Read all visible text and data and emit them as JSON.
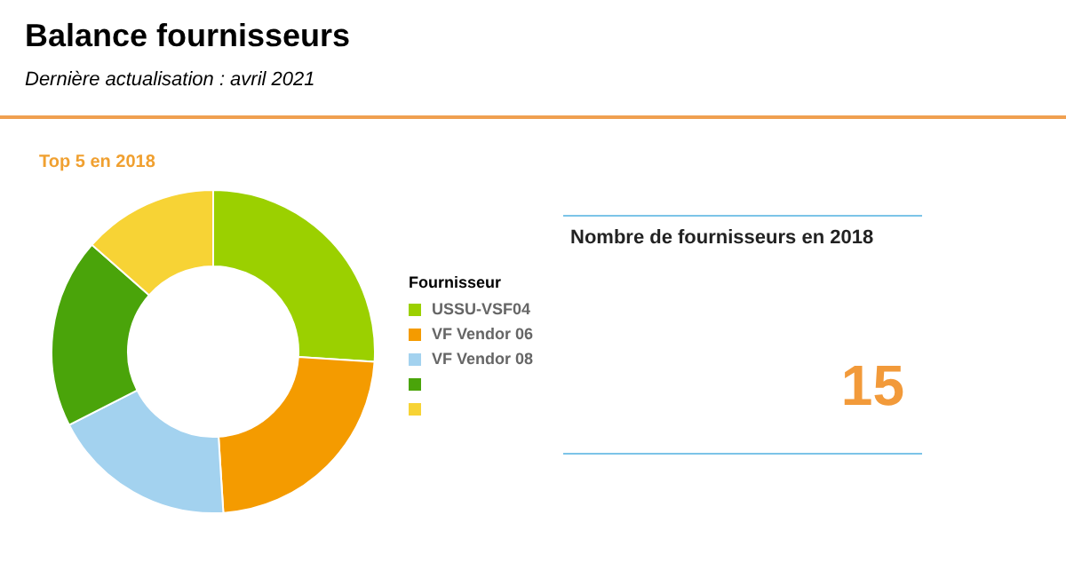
{
  "chart_data": [
    {
      "type": "donut",
      "title": "Balance fournisseurs",
      "subtitle": "Dernière actualisation : avril 2021",
      "annotations": [
        "Top 5 en 2018"
      ],
      "legend_title": "Fournisseur",
      "legend": "right",
      "categories": [
        "USSU-VSF04",
        "VF Vendor 06",
        "VF Vendor 08",
        null,
        null
      ],
      "values": [
        26,
        23,
        18.5,
        19,
        13.5
      ],
      "colors": [
        "#9bd000",
        "#f49b00",
        "#a3d2ef",
        "#4aa40a",
        "#f7d335"
      ]
    },
    {
      "type": "other",
      "title": "Nombre de fournisseurs en 2018",
      "annotations": [
        "15"
      ]
    }
  ]
}
